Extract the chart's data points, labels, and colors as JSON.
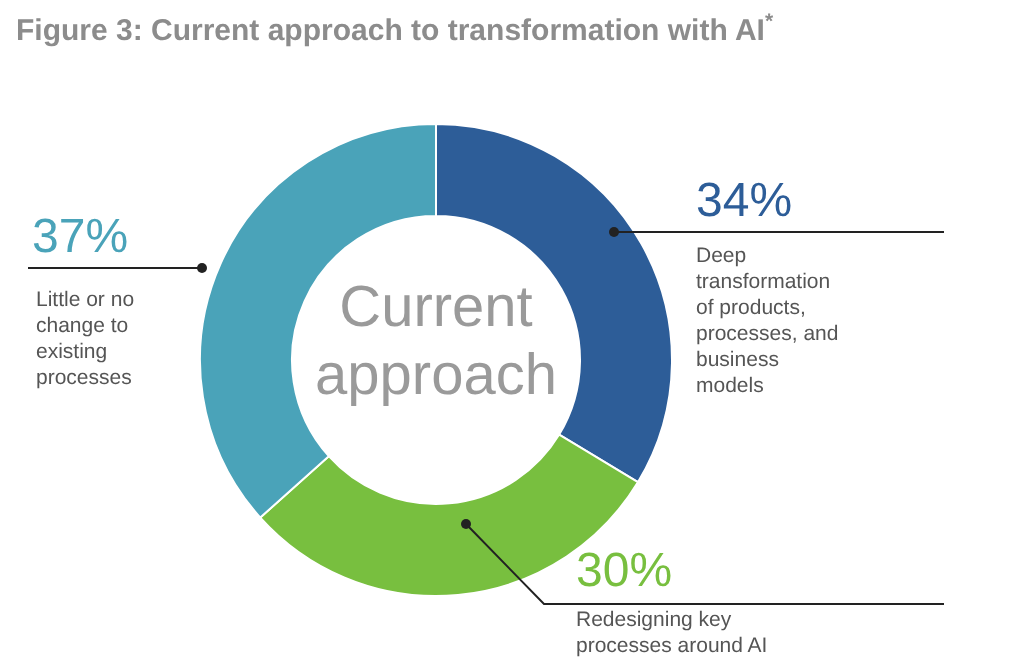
{
  "chart_data": {
    "type": "donut",
    "title": "Figure 3: Current approach to transformation with AI$^{*}$",
    "categories": [
      "Deep transformation of products, processes, and business models",
      "Redesigning key processes around AI",
      "Little or no change to existing processes"
    ],
    "values": [
      34,
      30,
      37
    ],
    "colors": [
      "#2d5d98",
      "#78bf3f",
      "#4aa3b9"
    ],
    "value_labels": [
      "34%",
      "30%",
      "37%"
    ],
    "annotations": [
      "Current approach"
    ]
  }
}
